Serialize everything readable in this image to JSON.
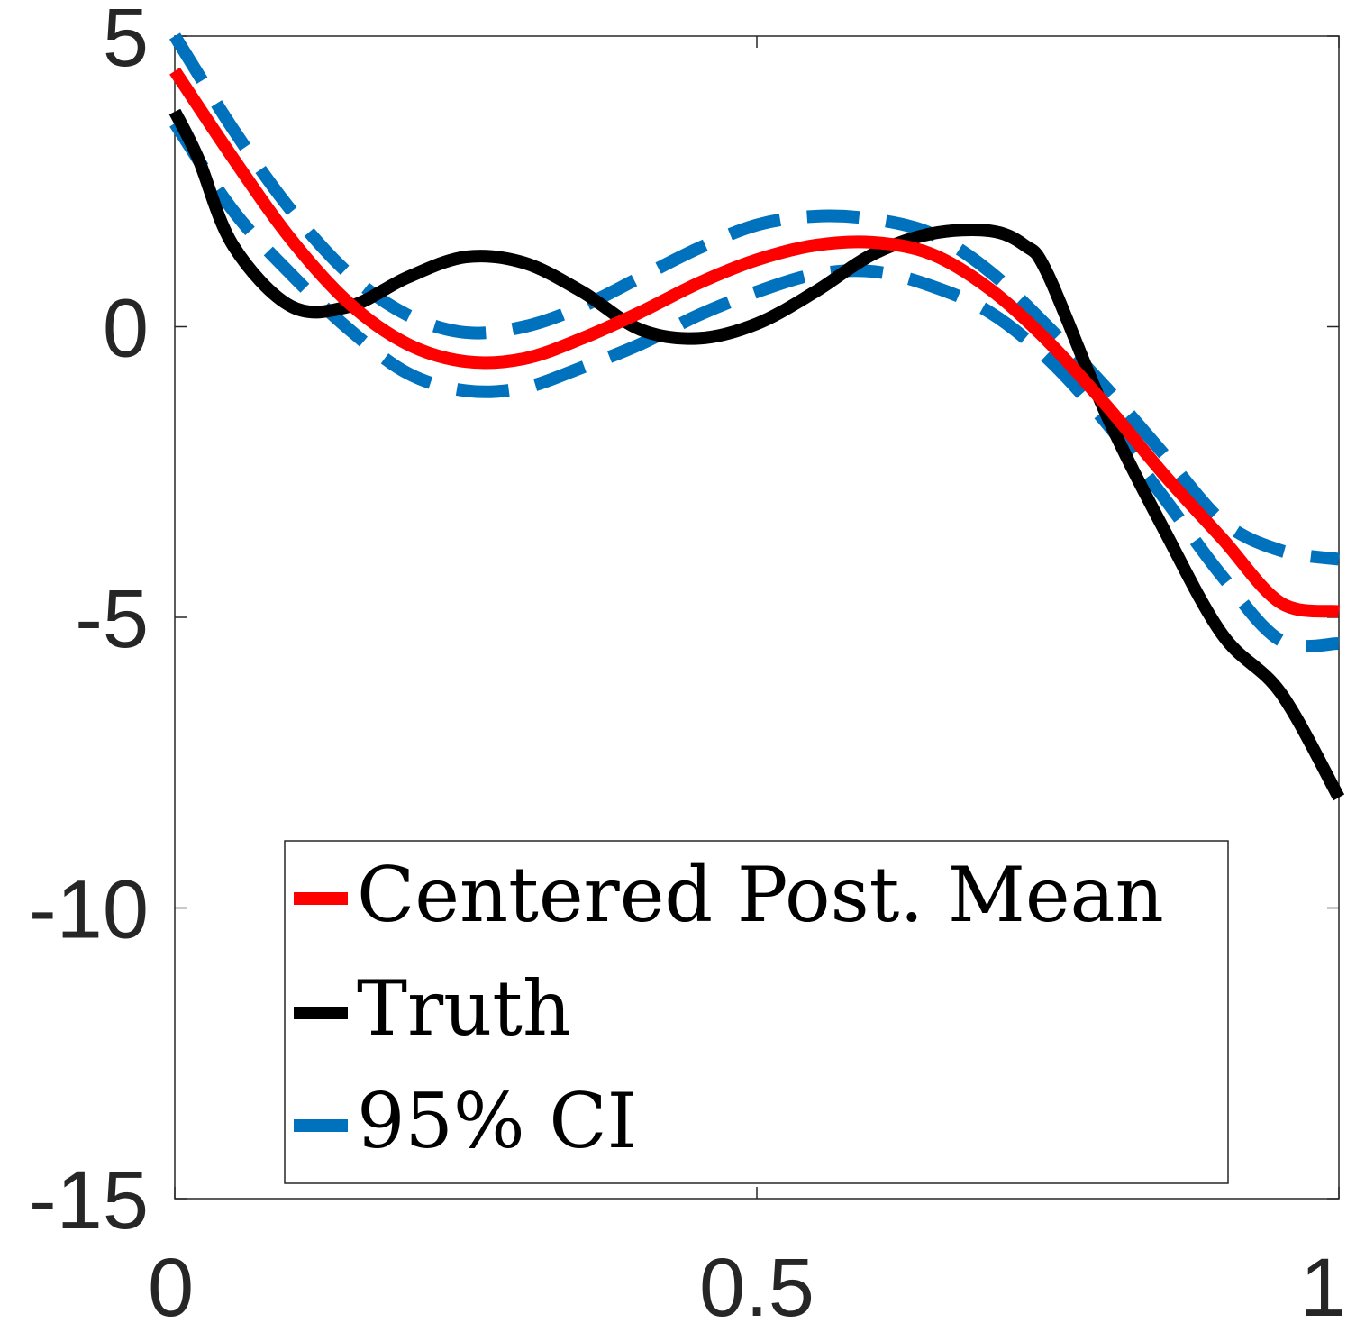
{
  "chart_data": {
    "type": "line",
    "title": "",
    "xlabel": "",
    "ylabel": "",
    "xlim": [
      0,
      1
    ],
    "ylim": [
      -15,
      5
    ],
    "xticks": [
      0,
      0.5,
      1
    ],
    "xtick_labels": [
      "0",
      "0.5",
      "1"
    ],
    "yticks": [
      5,
      0,
      -5,
      -10,
      -15
    ],
    "ytick_labels": [
      "5",
      "0",
      "-5",
      "-10",
      "-15"
    ],
    "grid": false,
    "legend_position": "bottom-center",
    "series": [
      {
        "name": "Centered Post. Mean",
        "color": "#ff0000",
        "style": "solid",
        "x": [
          0,
          0.05,
          0.1,
          0.15,
          0.2,
          0.25,
          0.3,
          0.35,
          0.4,
          0.45,
          0.5,
          0.55,
          0.6,
          0.65,
          0.7,
          0.75,
          0.8,
          0.85,
          0.9,
          0.95,
          1
        ],
        "y": [
          4.4,
          2.9,
          1.5,
          0.4,
          -0.3,
          -0.6,
          -0.55,
          -0.2,
          0.25,
          0.75,
          1.15,
          1.4,
          1.45,
          1.25,
          0.65,
          -0.25,
          -1.35,
          -2.55,
          -3.65,
          -4.75,
          -4.9
        ]
      },
      {
        "name": "Truth",
        "color": "#000000",
        "style": "solid",
        "x": [
          0,
          0.02,
          0.05,
          0.1,
          0.15,
          0.2,
          0.25,
          0.3,
          0.35,
          0.4,
          0.45,
          0.5,
          0.55,
          0.6,
          0.65,
          0.7,
          0.73,
          0.75,
          0.8,
          0.85,
          0.9,
          0.95,
          1
        ],
        "y": [
          3.7,
          2.9,
          1.4,
          0.35,
          0.35,
          0.85,
          1.2,
          1.1,
          0.6,
          -0.05,
          -0.2,
          0.05,
          0.6,
          1.25,
          1.6,
          1.65,
          1.4,
          0.9,
          -1.5,
          -3.5,
          -5.3,
          -6.3,
          -8.1
        ]
      },
      {
        "name": "95% CI",
        "color": "#0072bd",
        "style": "dashed",
        "x": [
          0,
          0.05,
          0.1,
          0.15,
          0.2,
          0.25,
          0.3,
          0.35,
          0.4,
          0.45,
          0.5,
          0.55,
          0.6,
          0.65,
          0.7,
          0.75,
          0.8,
          0.85,
          0.9,
          0.95,
          1
        ],
        "y": [
          5.0,
          3.4,
          2.0,
          0.9,
          0.2,
          -0.1,
          0.0,
          0.35,
          0.85,
          1.35,
          1.75,
          1.9,
          1.85,
          1.6,
          0.95,
          0.0,
          -1.05,
          -2.2,
          -3.35,
          -3.85,
          -4.0
        ]
      },
      {
        "name": "",
        "color": "#0072bd",
        "style": "dashed",
        "x": [
          0,
          0.05,
          0.1,
          0.15,
          0.2,
          0.25,
          0.3,
          0.35,
          0.4,
          0.45,
          0.5,
          0.55,
          0.6,
          0.65,
          0.7,
          0.75,
          0.8,
          0.85,
          0.9,
          0.95,
          1
        ],
        "y": [
          3.5,
          2.0,
          0.9,
          -0.05,
          -0.8,
          -1.1,
          -1.05,
          -0.7,
          -0.3,
          0.2,
          0.6,
          0.9,
          0.95,
          0.7,
          0.25,
          -0.55,
          -1.65,
          -2.95,
          -4.3,
          -5.4,
          -5.45
        ]
      }
    ],
    "legend": [
      {
        "label": "Centered Post. Mean",
        "color": "#ff0000",
        "style": "solid"
      },
      {
        "label": "Truth",
        "color": "#000000",
        "style": "solid"
      },
      {
        "label": "95% CI",
        "color": "#0072bd",
        "style": "dashed"
      }
    ]
  }
}
